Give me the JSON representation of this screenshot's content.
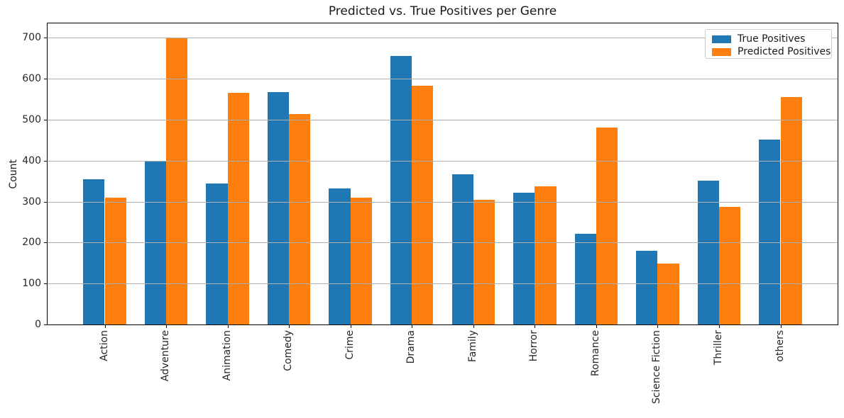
{
  "chart_data": {
    "type": "bar",
    "title": "Predicted vs. True Positives per Genre",
    "xlabel": "",
    "ylabel": "Count",
    "categories": [
      "Action",
      "Adventure",
      "Animation",
      "Comedy",
      "Crime",
      "Drama",
      "Family",
      "Horror",
      "Romance",
      "Science Fiction",
      "Thriller",
      "others"
    ],
    "series": [
      {
        "name": "True Positives",
        "color": "#1f77b4",
        "values": [
          354,
          399,
          344,
          568,
          332,
          656,
          366,
          321,
          222,
          180,
          351,
          451
        ]
      },
      {
        "name": "Predicted Positives",
        "color": "#ff7f0e",
        "values": [
          309,
          700,
          565,
          513,
          310,
          583,
          304,
          338,
          480,
          148,
          288,
          556
        ]
      }
    ],
    "ylim": [
      0,
      735
    ],
    "yticks": [
      0,
      100,
      200,
      300,
      400,
      500,
      600,
      700
    ],
    "xlim": [
      -0.93,
      11.93
    ],
    "bar_width": 0.35,
    "grid": "horizontal",
    "grid_color": "#b0b0b0",
    "grid_on": true,
    "legend_position": "upper right",
    "background_color": "#ffffff",
    "frame_color": "#000000"
  }
}
